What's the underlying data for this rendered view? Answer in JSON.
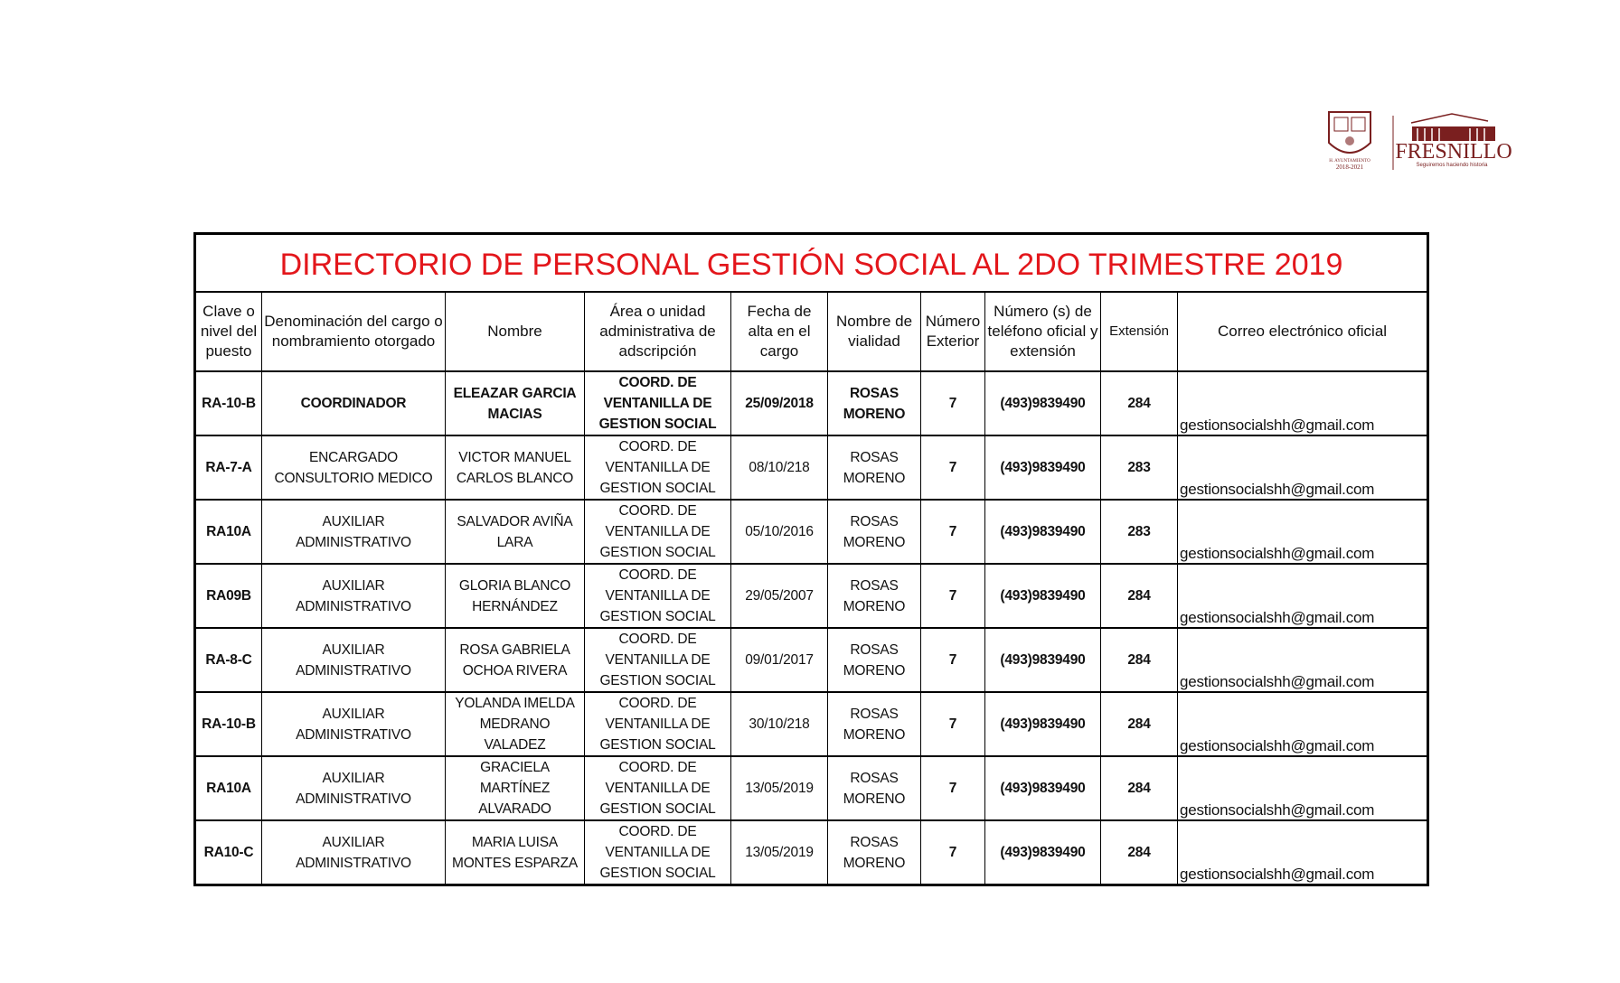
{
  "logo": {
    "left_text": "H. AYUNTAMIENTO 2018-2021",
    "brand": "FRESNILLO",
    "slogan": "Seguiremos haciendo historia",
    "brand_color": "#7a1f1f"
  },
  "title": "DIRECTORIO DE PERSONAL GESTIÓN SOCIAL  AL 2DO TRIMESTRE 2019",
  "title_color": "#e3161b",
  "columns": [
    "Clave o nivel del puesto",
    "Denominación del cargo o nombramiento otorgado",
    "Nombre",
    "Área o unidad administrativa de adscripción",
    "Fecha de alta en el cargo",
    "Nombre de vialidad",
    "Número Exterior",
    "Número (s) de teléfono oficial y extensión",
    "Extensión",
    "Correo electrónico oficial"
  ],
  "rows": [
    [
      "RA-10-B",
      "COORDINADOR",
      "ELEAZAR GARCIA MACIAS",
      "COORD. DE VENTANILLA DE GESTION SOCIAL",
      "25/09/2018",
      "ROSAS MORENO",
      "7",
      "(493)9839490",
      "284",
      "gestionsocialshh@gmail.com"
    ],
    [
      "RA-7-A",
      "ENCARGADO CONSULTORIO MEDICO",
      "VICTOR MANUEL CARLOS BLANCO",
      "COORD. DE VENTANILLA DE GESTION SOCIAL",
      "08/10/218",
      "ROSAS MORENO",
      "7",
      "(493)9839490",
      "283",
      "gestionsocialshh@gmail.com"
    ],
    [
      "RA10A",
      "AUXILIAR ADMINISTRATIVO",
      "SALVADOR AVIÑA LARA",
      "COORD. DE VENTANILLA DE GESTION SOCIAL",
      "05/10/2016",
      "ROSAS MORENO",
      "7",
      "(493)9839490",
      "283",
      "gestionsocialshh@gmail.com"
    ],
    [
      "RA09B",
      "AUXILIAR ADMINISTRATIVO",
      "GLORIA BLANCO HERNÁNDEZ",
      "COORD. DE VENTANILLA DE GESTION SOCIAL",
      "29/05/2007",
      "ROSAS MORENO",
      "7",
      "(493)9839490",
      "284",
      "gestionsocialshh@gmail.com"
    ],
    [
      "RA-8-C",
      "AUXILIAR ADMINISTRATIVO",
      "ROSA GABRIELA OCHOA RIVERA",
      "COORD. DE VENTANILLA DE GESTION SOCIAL",
      "09/01/2017",
      "ROSAS MORENO",
      "7",
      "(493)9839490",
      "284",
      "gestionsocialshh@gmail.com"
    ],
    [
      "RA-10-B",
      "AUXILIAR ADMINISTRATIVO",
      "YOLANDA IMELDA MEDRANO VALADEZ",
      "COORD. DE VENTANILLA DE GESTION SOCIAL",
      "30/10/218",
      "ROSAS MORENO",
      "7",
      "(493)9839490",
      "284",
      "gestionsocialshh@gmail.com"
    ],
    [
      "RA10A",
      "AUXILIAR ADMINISTRATIVO",
      "GRACIELA MARTÍNEZ ALVARADO",
      "COORD. DE VENTANILLA DE GESTION SOCIAL",
      "13/05/2019",
      "ROSAS MORENO",
      "7",
      "(493)9839490",
      "284",
      "gestionsocialshh@gmail.com"
    ],
    [
      "RA10-C",
      "AUXILIAR ADMINISTRATIVO",
      "MARIA LUISA MONTES ESPARZA",
      "COORD. DE VENTANILLA DE GESTION SOCIAL",
      "13/05/2019",
      "ROSAS MORENO",
      "7",
      "(493)9839490",
      "284",
      "gestionsocialshh@gmail.com"
    ]
  ]
}
